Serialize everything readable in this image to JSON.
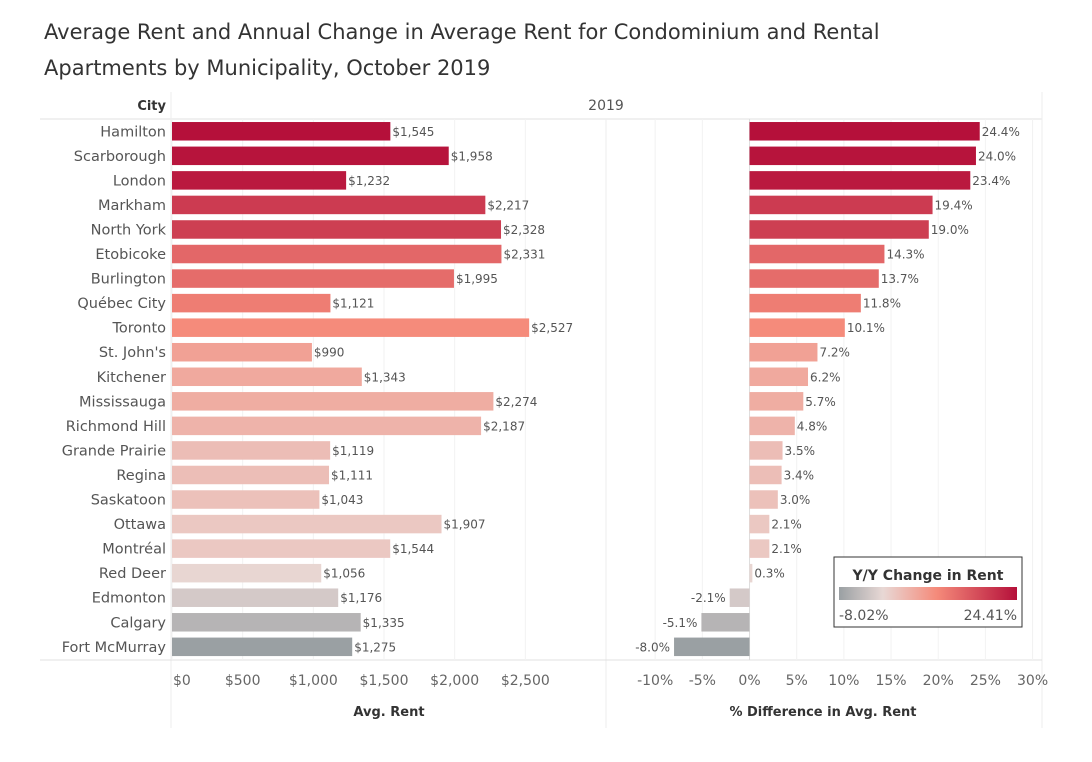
{
  "title_line1": "Average Rent and Annual Change in Average Rent for Condominium and Rental",
  "title_line2": "Apartments by Municipality, October 2019",
  "column_header": "City",
  "year_header": "2019",
  "legend": {
    "title": "Y/Y Change in Rent",
    "min_label": "-8.02%",
    "max_label": "24.41%",
    "colors": {
      "negative": "#9aa0a3",
      "zero": "#e8d8d5",
      "mid": "#f58a7a",
      "positive": "#b5103a"
    }
  },
  "chart_data": [
    {
      "type": "bar",
      "orientation": "horizontal",
      "categories": [
        "Hamilton",
        "Scarborough",
        "London",
        "Markham",
        "North York",
        "Etobicoke",
        "Burlington",
        "Québec City",
        "Toronto",
        "St. John's",
        "Kitchener",
        "Mississauga",
        "Richmond Hill",
        "Grande Prairie",
        "Regina",
        "Saskatoon",
        "Ottawa",
        "Montréal",
        "Red Deer",
        "Edmonton",
        "Calgary",
        "Fort McMurray"
      ],
      "values": [
        1545,
        1958,
        1232,
        2217,
        2328,
        2331,
        1995,
        1121,
        2527,
        990,
        1343,
        2274,
        2187,
        1119,
        1111,
        1043,
        1907,
        1544,
        1056,
        1176,
        1335,
        1275
      ],
      "data_labels": [
        "$1,545",
        "$1,958",
        "$1,232",
        "$2,217",
        "$2,328",
        "$2,331",
        "$1,995",
        "$1,121",
        "$2,527",
        "$990",
        "$1,343",
        "$2,274",
        "$2,187",
        "$1,119",
        "$1,111",
        "$1,043",
        "$1,907",
        "$1,544",
        "$1,056",
        "$1,176",
        "$1,335",
        "$1,275"
      ],
      "xlabel": "Avg. Rent",
      "xlim": [
        0,
        3000
      ],
      "ticks": [
        0,
        500,
        1000,
        1500,
        2000,
        2500
      ],
      "tick_labels": [
        "$0",
        "$500",
        "$1,000",
        "$1,500",
        "$2,000",
        "$2,500"
      ],
      "color_by": "pct_change"
    },
    {
      "type": "bar",
      "orientation": "horizontal",
      "categories": [
        "Hamilton",
        "Scarborough",
        "London",
        "Markham",
        "North York",
        "Etobicoke",
        "Burlington",
        "Québec City",
        "Toronto",
        "St. John's",
        "Kitchener",
        "Mississauga",
        "Richmond Hill",
        "Grande Prairie",
        "Regina",
        "Saskatoon",
        "Ottawa",
        "Montréal",
        "Red Deer",
        "Edmonton",
        "Calgary",
        "Fort McMurray"
      ],
      "values": [
        24.4,
        24.0,
        23.4,
        19.4,
        19.0,
        14.3,
        13.7,
        11.8,
        10.1,
        7.2,
        6.2,
        5.7,
        4.8,
        3.5,
        3.4,
        3.0,
        2.1,
        2.1,
        0.3,
        -2.1,
        -5.1,
        -8.0
      ],
      "data_labels": [
        "24.4%",
        "24.0%",
        "23.4%",
        "19.4%",
        "19.0%",
        "14.3%",
        "13.7%",
        "11.8%",
        "10.1%",
        "7.2%",
        "6.2%",
        "5.7%",
        "4.8%",
        "3.5%",
        "3.4%",
        "3.0%",
        "2.1%",
        "2.1%",
        "0.3%",
        "-2.1%",
        "-5.1%",
        "-8.0%"
      ],
      "xlabel": "% Difference in Avg. Rent",
      "xlim": [
        -15,
        31
      ],
      "ticks": [
        -10,
        -5,
        0,
        5,
        10,
        15,
        20,
        25,
        30
      ],
      "tick_labels": [
        "-10%",
        "-5%",
        "0%",
        "5%",
        "10%",
        "15%",
        "20%",
        "25%",
        "30%"
      ]
    }
  ]
}
